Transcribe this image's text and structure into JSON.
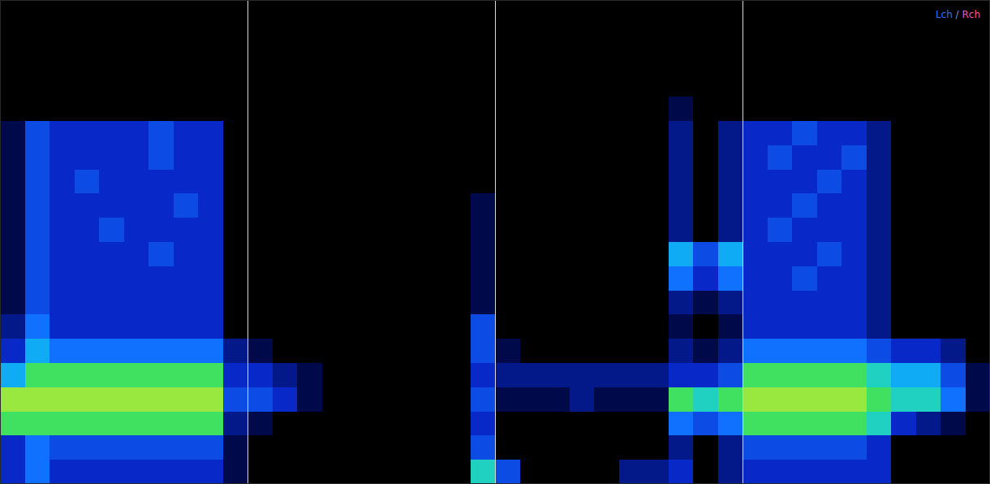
{
  "chart_data": {
    "type": "heatmap",
    "xlim": [
      0,
      4
    ],
    "xticks": [
      1,
      2,
      3
    ],
    "ylim": [
      0,
      1
    ],
    "grid": true,
    "tick_labels": false,
    "color_range": [
      0,
      10
    ],
    "annotations": [
      {
        "text": "Lch",
        "color": "#2f6fff"
      },
      {
        "text": " / ",
        "color": "#7f8fe0"
      },
      {
        "text": "Rch",
        "color": "#ff4fa0"
      }
    ],
    "cells": [
      [
        0,
        0,
        0,
        0,
        0,
        0,
        0,
        0,
        0,
        0,
        0,
        0,
        0,
        0,
        0,
        0,
        0,
        0,
        0,
        0,
        0,
        0,
        0,
        0,
        0,
        0,
        0,
        0,
        0,
        0,
        0,
        0,
        0,
        0,
        0,
        0,
        0,
        0,
        0,
        0
      ],
      [
        0,
        0,
        0,
        0,
        0,
        0,
        0,
        0,
        0,
        0,
        0,
        0,
        0,
        0,
        0,
        0,
        0,
        0,
        0,
        0,
        0,
        0,
        0,
        0,
        0,
        0,
        0,
        0,
        0,
        0,
        0,
        0,
        0,
        0,
        0,
        0,
        0,
        0,
        0,
        0
      ],
      [
        0,
        0,
        0,
        0,
        0,
        0,
        0,
        0,
        0,
        0,
        0,
        0,
        0,
        0,
        0,
        0,
        0,
        0,
        0,
        0,
        0,
        0,
        0,
        0,
        0,
        0,
        0,
        0,
        0,
        0,
        0,
        0,
        0,
        0,
        0,
        0,
        0,
        0,
        0,
        0
      ],
      [
        0,
        0,
        0,
        0,
        0,
        0,
        0,
        0,
        0,
        0,
        0,
        0,
        0,
        0,
        0,
        0,
        0,
        0,
        0,
        0,
        0,
        0,
        0,
        0,
        0,
        0,
        0,
        0,
        0,
        0,
        0,
        0,
        0,
        0,
        0,
        0,
        0,
        0,
        0,
        0
      ],
      [
        0,
        0,
        0,
        0,
        0,
        0,
        0,
        0,
        0,
        0,
        0,
        0,
        0,
        0,
        0,
        0,
        0,
        0,
        0,
        0,
        0,
        0,
        0,
        0,
        0,
        0,
        0,
        1,
        0,
        0,
        0,
        0,
        0,
        0,
        0,
        0,
        0,
        0,
        0,
        0
      ],
      [
        1,
        4,
        3,
        3,
        3,
        3,
        4,
        3,
        3,
        0,
        0,
        0,
        0,
        0,
        0,
        0,
        0,
        0,
        0,
        0,
        0,
        0,
        0,
        0,
        0,
        0,
        0,
        2,
        0,
        2,
        3,
        3,
        4,
        3,
        3,
        2,
        0,
        0,
        0,
        0
      ],
      [
        1,
        4,
        3,
        3,
        3,
        3,
        4,
        3,
        3,
        0,
        0,
        0,
        0,
        0,
        0,
        0,
        0,
        0,
        0,
        0,
        0,
        0,
        0,
        0,
        0,
        0,
        0,
        2,
        0,
        2,
        3,
        4,
        3,
        3,
        4,
        2,
        0,
        0,
        0,
        0
      ],
      [
        1,
        4,
        3,
        4,
        3,
        3,
        3,
        3,
        3,
        0,
        0,
        0,
        0,
        0,
        0,
        0,
        0,
        0,
        0,
        0,
        0,
        0,
        0,
        0,
        0,
        0,
        0,
        2,
        0,
        2,
        3,
        3,
        3,
        4,
        3,
        2,
        0,
        0,
        0,
        0
      ],
      [
        1,
        4,
        3,
        3,
        3,
        3,
        3,
        4,
        3,
        0,
        0,
        0,
        0,
        0,
        0,
        0,
        0,
        0,
        0,
        1,
        0,
        0,
        0,
        0,
        0,
        0,
        0,
        2,
        0,
        2,
        3,
        3,
        4,
        3,
        3,
        2,
        0,
        0,
        0,
        0
      ],
      [
        1,
        4,
        3,
        3,
        4,
        3,
        3,
        3,
        3,
        0,
        0,
        0,
        0,
        0,
        0,
        0,
        0,
        0,
        0,
        1,
        0,
        0,
        0,
        0,
        0,
        0,
        0,
        2,
        0,
        2,
        3,
        4,
        3,
        3,
        3,
        2,
        0,
        0,
        0,
        0
      ],
      [
        1,
        4,
        3,
        3,
        3,
        3,
        4,
        3,
        3,
        0,
        0,
        0,
        0,
        0,
        0,
        0,
        0,
        0,
        0,
        1,
        0,
        0,
        0,
        0,
        0,
        0,
        0,
        6,
        4,
        6,
        3,
        3,
        3,
        4,
        3,
        2,
        0,
        0,
        0,
        0
      ],
      [
        1,
        4,
        3,
        3,
        3,
        3,
        3,
        3,
        3,
        0,
        0,
        0,
        0,
        0,
        0,
        0,
        0,
        0,
        0,
        1,
        0,
        0,
        0,
        0,
        0,
        0,
        0,
        5,
        3,
        5,
        3,
        3,
        4,
        3,
        3,
        2,
        0,
        0,
        0,
        0
      ],
      [
        1,
        4,
        3,
        3,
        3,
        3,
        3,
        3,
        3,
        0,
        0,
        0,
        0,
        0,
        0,
        0,
        0,
        0,
        0,
        1,
        0,
        0,
        0,
        0,
        0,
        0,
        0,
        2,
        1,
        2,
        3,
        3,
        3,
        3,
        3,
        2,
        0,
        0,
        0,
        0
      ],
      [
        2,
        5,
        3,
        3,
        3,
        3,
        3,
        3,
        3,
        0,
        0,
        0,
        0,
        0,
        0,
        0,
        0,
        0,
        0,
        4,
        0,
        0,
        0,
        0,
        0,
        0,
        0,
        1,
        0,
        1,
        3,
        3,
        3,
        3,
        3,
        2,
        0,
        0,
        0,
        0
      ],
      [
        3,
        6,
        5,
        5,
        5,
        5,
        5,
        5,
        5,
        2,
        1,
        0,
        0,
        0,
        0,
        0,
        0,
        0,
        0,
        4,
        1,
        0,
        0,
        0,
        0,
        0,
        0,
        2,
        1,
        2,
        5,
        5,
        5,
        5,
        5,
        4,
        3,
        3,
        2,
        0
      ],
      [
        6,
        8,
        8,
        8,
        8,
        8,
        8,
        8,
        8,
        3,
        3,
        2,
        1,
        0,
        0,
        0,
        0,
        0,
        0,
        3,
        2,
        2,
        2,
        2,
        2,
        2,
        2,
        3,
        3,
        4,
        8,
        8,
        8,
        8,
        8,
        7,
        6,
        6,
        4,
        1
      ],
      [
        9,
        9,
        9,
        9,
        9,
        9,
        9,
        9,
        9,
        4,
        4,
        3,
        1,
        0,
        0,
        0,
        0,
        0,
        0,
        4,
        1,
        1,
        1,
        2,
        1,
        1,
        1,
        8,
        7,
        8,
        9,
        9,
        9,
        9,
        9,
        8,
        7,
        7,
        5,
        1
      ],
      [
        8,
        8,
        8,
        8,
        8,
        8,
        8,
        8,
        8,
        2,
        1,
        0,
        0,
        0,
        0,
        0,
        0,
        0,
        0,
        3,
        0,
        0,
        0,
        0,
        0,
        0,
        0,
        5,
        4,
        5,
        8,
        8,
        8,
        8,
        8,
        7,
        3,
        2,
        1,
        0
      ],
      [
        3,
        5,
        4,
        4,
        4,
        4,
        4,
        4,
        4,
        1,
        0,
        0,
        0,
        0,
        0,
        0,
        0,
        0,
        0,
        4,
        0,
        0,
        0,
        0,
        0,
        0,
        0,
        2,
        0,
        2,
        4,
        4,
        4,
        4,
        4,
        3,
        0,
        0,
        0,
        0
      ],
      [
        3,
        5,
        3,
        3,
        3,
        3,
        3,
        3,
        3,
        1,
        0,
        0,
        0,
        0,
        0,
        0,
        0,
        0,
        0,
        7,
        4,
        0,
        0,
        0,
        0,
        2,
        2,
        3,
        0,
        2,
        3,
        3,
        3,
        3,
        3,
        3,
        0,
        0,
        0,
        0
      ]
    ]
  }
}
